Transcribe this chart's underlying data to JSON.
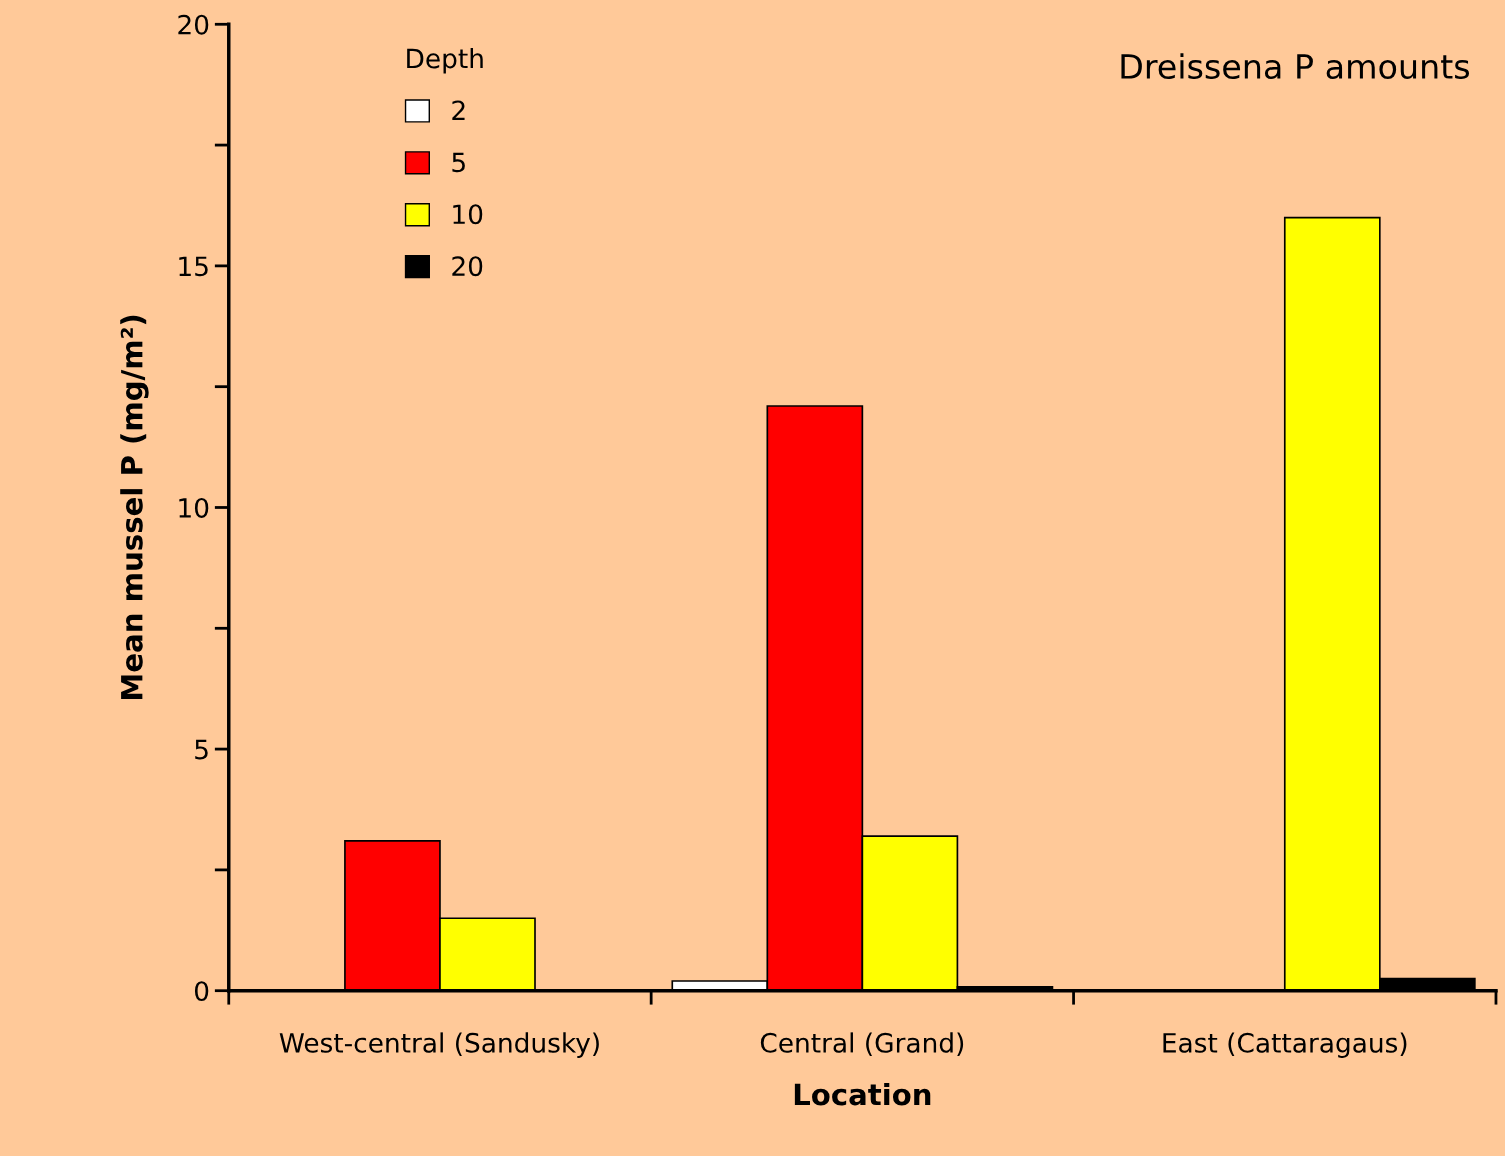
{
  "chart_data": {
    "type": "bar",
    "title": "Dreissena P amounts",
    "xlabel": "Location",
    "ylabel": "Mean mussel P (mg/m²)",
    "legend_title": "Depth",
    "legend": "top left",
    "categories": [
      "West-central (Sandusky)",
      "Central (Grand)",
      "East (Cattaragaus)"
    ],
    "series": [
      {
        "name": "2",
        "color": "#ffffff",
        "values": [
          null,
          0.2,
          null
        ]
      },
      {
        "name": "5",
        "color": "#ff0000",
        "values": [
          3.1,
          12.1,
          null
        ]
      },
      {
        "name": "10",
        "color": "#ffff00",
        "values": [
          1.5,
          3.2,
          16.0
        ]
      },
      {
        "name": "20",
        "color": "#000000",
        "values": [
          null,
          0.08,
          0.25
        ]
      }
    ],
    "ylim": [
      0,
      20
    ],
    "yticks": [
      0,
      {
        "value": 2.5,
        "label": null
      },
      5,
      {
        "value": 7.5,
        "label": null
      },
      10,
      {
        "value": 12.5,
        "label": null
      },
      15,
      {
        "value": 17.5,
        "label": null
      },
      20
    ],
    "grid": false
  }
}
